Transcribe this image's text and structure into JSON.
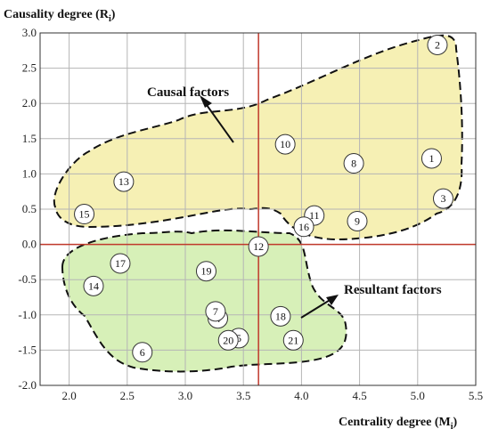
{
  "chart_data": {
    "type": "scatter",
    "xlabel": "Centrality degree (M",
    "xlabel_sub": "i",
    "xlabel_end": ")",
    "ylabel": "Causality degree (R",
    "ylabel_sub": "i",
    "ylabel_end": ")",
    "xlim": [
      1.75,
      5.5
    ],
    "ylim": [
      -2.0,
      3.0
    ],
    "x_ticks": [
      "2.0",
      "2.5",
      "3.0",
      "3.5",
      "4.0",
      "4.5",
      "5.0",
      "5.5"
    ],
    "y_ticks": [
      "3.0",
      "2.5",
      "2.0",
      "1.5",
      "1.0",
      "0.5",
      "0.0",
      "-0.5",
      "-1.0",
      "-1.5",
      "-2.0"
    ],
    "x_tick_values": [
      2.0,
      2.5,
      3.0,
      3.5,
      4.0,
      4.5,
      5.0,
      5.5
    ],
    "y_tick_values": [
      3.0,
      2.5,
      2.0,
      1.5,
      1.0,
      0.5,
      0.0,
      -0.5,
      -1.0,
      -1.5,
      -2.0
    ],
    "grid": true,
    "reference_lines": {
      "x": 3.63,
      "y": 0.0,
      "color": "#c0392b"
    },
    "regions": [
      {
        "name": "Causal factors",
        "fill": "#f6f0b4"
      },
      {
        "name": "Resultant factors",
        "fill": "#d7f0b8"
      }
    ],
    "annotations": [
      "Causal factors",
      "Resultant factors"
    ],
    "points": [
      {
        "label": "1",
        "x": 5.12,
        "y": 1.22
      },
      {
        "label": "2",
        "x": 5.17,
        "y": 2.83
      },
      {
        "label": "3",
        "x": 5.22,
        "y": 0.65
      },
      {
        "label": "4",
        "x": 3.28,
        "y": -1.05
      },
      {
        "label": "5",
        "x": 3.46,
        "y": -1.33
      },
      {
        "label": "6",
        "x": 2.63,
        "y": -1.53
      },
      {
        "label": "7",
        "x": 3.26,
        "y": -0.95
      },
      {
        "label": "8",
        "x": 4.45,
        "y": 1.15
      },
      {
        "label": "9",
        "x": 4.48,
        "y": 0.33
      },
      {
        "label": "10",
        "x": 3.86,
        "y": 1.42
      },
      {
        "label": "11",
        "x": 4.11,
        "y": 0.41
      },
      {
        "label": "12",
        "x": 3.63,
        "y": -0.03
      },
      {
        "label": "13",
        "x": 2.47,
        "y": 0.89
      },
      {
        "label": "14",
        "x": 2.21,
        "y": -0.59
      },
      {
        "label": "15",
        "x": 2.13,
        "y": 0.43
      },
      {
        "label": "16",
        "x": 4.02,
        "y": 0.25
      },
      {
        "label": "17",
        "x": 2.44,
        "y": -0.27
      },
      {
        "label": "18",
        "x": 3.82,
        "y": -1.02
      },
      {
        "label": "19",
        "x": 3.18,
        "y": -0.38
      },
      {
        "label": "20",
        "x": 3.37,
        "y": -1.36
      },
      {
        "label": "21",
        "x": 3.93,
        "y": -1.36
      }
    ]
  }
}
